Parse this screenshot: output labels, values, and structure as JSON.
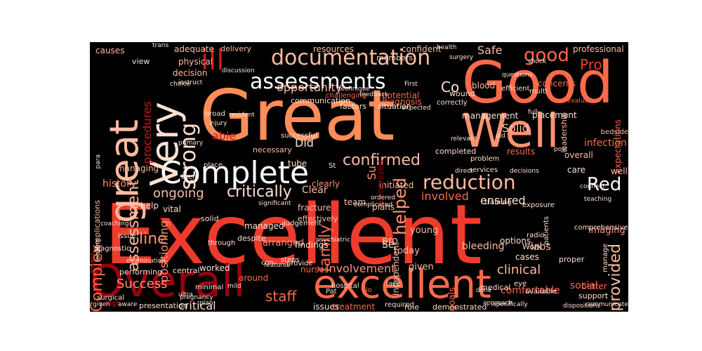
{
  "cloud": {
    "words": [
      {
        "text": "Excellent",
        "color": "#ef3b2c"
      },
      {
        "text": "Great",
        "color": "#fc8d59"
      },
      {
        "text": "Good",
        "color": "#fb6a4a"
      },
      {
        "text": "Well",
        "color": "#fc9272"
      },
      {
        "text": "Complete",
        "color": "#ffffff"
      },
      {
        "text": "Overall",
        "color": "#99000d"
      },
      {
        "text": "excellent",
        "color": "#fb6a4a"
      },
      {
        "text": "great",
        "color": "#fcbba1"
      },
      {
        "text": "Very",
        "color": "#fee0d2"
      },
      {
        "text": "ill",
        "color": "#cb181d"
      },
      {
        "text": "documentation",
        "color": "#fcbba1"
      },
      {
        "text": "assessments",
        "color": "#ffffff"
      },
      {
        "text": "good",
        "color": "#fb6a4a"
      },
      {
        "text": "Pro",
        "color": "#ef3b2c"
      },
      {
        "text": "Safe",
        "color": "#fcbba1"
      },
      {
        "text": "Co",
        "color": "#fee0d2"
      },
      {
        "text": "strong",
        "color": "#fee0d2"
      },
      {
        "text": "assessment",
        "color": "#fcbba1"
      },
      {
        "text": "confirmed",
        "color": "#fcbba1"
      },
      {
        "text": "reduction",
        "color": "#fcbba1"
      },
      {
        "text": "Red",
        "color": "#ffffff"
      },
      {
        "text": "Complex",
        "color": "#fb6a4a"
      },
      {
        "text": "critically",
        "color": "#fee0d2"
      },
      {
        "text": "ongoing",
        "color": "#fcbba1"
      },
      {
        "text": "Solid",
        "color": "#fcbba1"
      },
      {
        "text": "Did",
        "color": "#fee0d2"
      },
      {
        "text": "Su",
        "color": "#fc9272"
      },
      {
        "text": "helped",
        "color": "#fc9272"
      },
      {
        "text": "involved",
        "color": "#fb6a4a"
      },
      {
        "text": "ensured",
        "color": "#fee0d2"
      },
      {
        "text": "provided",
        "color": "#fcbba1"
      },
      {
        "text": "line",
        "color": "#fc9272"
      },
      {
        "text": "family",
        "color": "#fb6a4a"
      },
      {
        "text": "involvement",
        "color": "#fc9272"
      },
      {
        "text": "clinical",
        "color": "#fcbba1"
      },
      {
        "text": "Success",
        "color": "#fc9272"
      },
      {
        "text": "critical",
        "color": "#fee0d2"
      },
      {
        "text": "staff",
        "color": "#fb6a4a"
      },
      {
        "text": "opportunity",
        "color": "#fcbba1"
      },
      {
        "text": "procedures",
        "color": "#cb181d"
      },
      {
        "text": "positioning",
        "color": "#fc9272"
      },
      {
        "text": "history",
        "color": "#fc9272"
      },
      {
        "text": "tube",
        "color": "#fee0d2"
      },
      {
        "text": "St",
        "color": "#fee0d2"
      },
      {
        "text": "managed",
        "color": "#fee0d2"
      },
      {
        "text": "arranged",
        "color": "#fc9272"
      },
      {
        "text": "findings",
        "color": "#fee0d2"
      },
      {
        "text": "Se",
        "color": "#fee0d2"
      },
      {
        "text": "today",
        "color": "#fcbba1"
      },
      {
        "text": "given",
        "color": "#fcbba1"
      },
      {
        "text": "bleeding",
        "color": "#fcbba1"
      },
      {
        "text": "labs",
        "color": "#fcbba1"
      },
      {
        "text": "imaging",
        "color": "#fc9272"
      },
      {
        "text": "infection",
        "color": "#fb6a4a"
      },
      {
        "text": "placement",
        "color": "#fee0d2"
      },
      {
        "text": "management",
        "color": "#fee0d2"
      },
      {
        "text": "blood",
        "color": "#fcbba1"
      },
      {
        "text": "results",
        "color": "#fb6a4a"
      },
      {
        "text": "overall",
        "color": "#fcbba1"
      },
      {
        "text": "care",
        "color": "#fee0d2"
      },
      {
        "text": "well",
        "color": "#fcbba1"
      },
      {
        "text": "professional",
        "color": "#fcbba1"
      },
      {
        "text": "Clear",
        "color": "#fcbba1"
      },
      {
        "text": "pro",
        "color": "#fcbba1"
      },
      {
        "text": "young",
        "color": "#fcbba1"
      },
      {
        "text": "plans",
        "color": "#fcbba1"
      },
      {
        "text": "initiated",
        "color": "#fcbba1"
      },
      {
        "text": "team",
        "color": "#fcbba1"
      },
      {
        "text": "diagnosis",
        "color": "#fb6a4a"
      },
      {
        "text": "resources",
        "color": "#fcbba1"
      },
      {
        "text": "confident",
        "color": "#fcbba1"
      },
      {
        "text": "adequate",
        "color": "#fcbba1"
      },
      {
        "text": "causes",
        "color": "#fcbba1"
      },
      {
        "text": "physical",
        "color": "#fcbba1"
      },
      {
        "text": "decision",
        "color": "#fcbba1"
      },
      {
        "text": "view",
        "color": "#fee0d2"
      },
      {
        "text": "able",
        "color": "#cb181d"
      },
      {
        "text": "managing",
        "color": "#fcbba1"
      },
      {
        "text": "help",
        "color": "#fee0d2"
      },
      {
        "text": "vital",
        "color": "#fee0d2"
      },
      {
        "text": "complications",
        "color": "#fcbba1"
      },
      {
        "text": "Independent",
        "color": "#fcbba1"
      },
      {
        "text": "goals",
        "color": "#fb6a4a"
      },
      {
        "text": "treatment",
        "color": "#fb6a4a"
      },
      {
        "text": "issues",
        "color": "#fee0d2"
      },
      {
        "text": "role",
        "color": "#fee0d2"
      },
      {
        "text": "demonstrated",
        "color": "#fee0d2"
      },
      {
        "text": "comfortable",
        "color": "#fb6a4a"
      },
      {
        "text": "social",
        "color": "#fb6a4a"
      },
      {
        "text": "support",
        "color": "#fee0d2"
      },
      {
        "text": "better",
        "color": "#fb6a4a"
      },
      {
        "text": "proper",
        "color": "#fee0d2"
      },
      {
        "text": "options",
        "color": "#fee0d2"
      },
      {
        "text": "cases",
        "color": "#fee0d2"
      },
      {
        "text": "medical",
        "color": "#fee0d2"
      },
      {
        "text": "worked",
        "color": "#fee0d2"
      },
      {
        "text": "central",
        "color": "#fee0d2"
      },
      {
        "text": "performing",
        "color": "#fee0d2"
      },
      {
        "text": "solid",
        "color": "#fee0d2"
      },
      {
        "text": "despite",
        "color": "#fee0d2"
      },
      {
        "text": "around",
        "color": "#fb6a4a"
      },
      {
        "text": "recognized",
        "color": "#99000d"
      },
      {
        "text": "expectations",
        "color": "#fb6a4a"
      },
      {
        "text": "leadership",
        "color": "#fcbba1"
      },
      {
        "text": "delivery",
        "color": "#fcbba1"
      },
      {
        "text": "wound",
        "color": "#fee0d2"
      },
      {
        "text": "concerns",
        "color": "#fb6a4a"
      },
      {
        "text": "communication",
        "color": "#fee0d2"
      },
      {
        "text": "factors",
        "color": "#fee0d2"
      },
      {
        "text": "situation",
        "color": "#fee0d2"
      },
      {
        "text": "potential",
        "color": "#fb6a4a"
      },
      {
        "text": "members",
        "color": "#fee0d2"
      },
      {
        "text": "necessary",
        "color": "#fcbba1"
      },
      {
        "text": "clearly",
        "color": "#fc9272"
      },
      {
        "text": "fracture",
        "color": "#fcbba1"
      },
      {
        "text": "effectively",
        "color": "#fcbba1"
      },
      {
        "text": "con",
        "color": "#fee0d2"
      },
      {
        "text": "nurses",
        "color": "#fb6a4a"
      },
      {
        "text": "provide",
        "color": "#fee0d2"
      },
      {
        "text": "minimal",
        "color": "#fee0d2"
      },
      {
        "text": "diagnostic",
        "color": "#fee0d2"
      },
      {
        "text": "surgical",
        "color": "#fee0d2"
      },
      {
        "text": "issue",
        "color": "#fee0d2"
      },
      {
        "text": "high",
        "color": "#cb181d"
      },
      {
        "text": "through",
        "color": "#fee0d2"
      },
      {
        "text": "place",
        "color": "#fee0d2"
      },
      {
        "text": "their",
        "color": "#fee0d2"
      },
      {
        "text": "broad",
        "color": "#fee0d2"
      },
      {
        "text": "successful",
        "color": "#fee0d2"
      },
      {
        "text": "challenging",
        "color": "#fb6a4a"
      },
      {
        "text": "completed",
        "color": "#fee0d2"
      },
      {
        "text": "efficient",
        "color": "#fee0d2"
      },
      {
        "text": "multi",
        "color": "#fee0d2"
      },
      {
        "text": "bedside",
        "color": "#fcbba1"
      },
      {
        "text": "Work",
        "color": "#fee0d2"
      },
      {
        "text": "eye",
        "color": "#fee0d2"
      },
      {
        "text": "radio",
        "color": "#fee0d2"
      },
      {
        "text": "lace",
        "color": "#fee0d2"
      },
      {
        "text": "hospital",
        "color": "#fee0d2"
      },
      {
        "text": "steps",
        "color": "#fee0d2"
      },
      {
        "text": "features",
        "color": "#fee0d2"
      },
      {
        "text": "mild",
        "color": "#fee0d2"
      },
      {
        "text": "primary",
        "color": "#fee0d2"
      },
      {
        "text": "ordered",
        "color": "#fee0d2"
      },
      {
        "text": "health",
        "color": "#fee0d2"
      },
      {
        "text": "surgery",
        "color": "#fee0d2"
      },
      {
        "text": "shock",
        "color": "#fee0d2"
      },
      {
        "text": "judgement",
        "color": "#fee0d2"
      },
      {
        "text": "No",
        "color": "#fb6a4a"
      },
      {
        "text": "Pat",
        "color": "#fee0d2"
      },
      {
        "text": "required",
        "color": "#fee0d2"
      },
      {
        "text": "manage",
        "color": "#fee0d2"
      },
      {
        "text": "available",
        "color": "#fee0d2"
      },
      {
        "text": "comprehensive",
        "color": "#fee0d2"
      },
      {
        "text": "exposure",
        "color": "#fee0d2"
      },
      {
        "text": "training",
        "color": "#fee0d2"
      },
      {
        "text": "services",
        "color": "#fee0d2"
      },
      {
        "text": "problem",
        "color": "#fee0d2"
      },
      {
        "text": "relevant",
        "color": "#fee0d2"
      },
      {
        "text": "correctly",
        "color": "#fee0d2"
      },
      {
        "text": "First",
        "color": "#fee0d2"
      },
      {
        "text": "feedback",
        "color": "#fee0d2"
      },
      {
        "text": "technique",
        "color": "#fee0d2"
      },
      {
        "text": "discussion",
        "color": "#fee0d2"
      },
      {
        "text": "choice",
        "color": "#fee0d2"
      },
      {
        "text": "patients",
        "color": "#fee0d2"
      },
      {
        "text": "old",
        "color": "#fee0d2"
      },
      {
        "text": "looking",
        "color": "#fee0d2"
      },
      {
        "text": "para",
        "color": "#fee0d2"
      },
      {
        "text": "always",
        "color": "#cb181d"
      },
      {
        "text": "given",
        "color": "#fee0d2"
      },
      {
        "text": "presentation",
        "color": "#fee0d2"
      },
      {
        "text": "pregnancy",
        "color": "#fee0d2"
      },
      {
        "text": "psychiatric",
        "color": "#fee0d2"
      },
      {
        "text": "significant",
        "color": "#fee0d2"
      },
      {
        "text": "direct",
        "color": "#fee0d2"
      },
      {
        "text": "evaluation",
        "color": "#fb6a4a"
      },
      {
        "text": "decisions",
        "color": "#fee0d2"
      },
      {
        "text": "specifically",
        "color": "#fee0d2"
      },
      {
        "text": "approach",
        "color": "#fee0d2"
      },
      {
        "text": "dispositions",
        "color": "#fee0d2"
      },
      {
        "text": "teaching",
        "color": "#fee0d2"
      },
      {
        "text": "communicate",
        "color": "#fee0d2"
      },
      {
        "text": "plan",
        "color": "#fee0d2"
      },
      {
        "text": "aware",
        "color": "#fee0d2"
      },
      {
        "text": "ultra",
        "color": "#fee0d2"
      },
      {
        "text": "injury",
        "color": "#fee0d2"
      },
      {
        "text": "resident",
        "color": "#fee0d2"
      },
      {
        "text": "complicated",
        "color": "#fee0d2"
      },
      {
        "text": "expected",
        "color": "#fee0d2"
      },
      {
        "text": "done",
        "color": "#fee0d2"
      },
      {
        "text": "questions",
        "color": "#fee0d2"
      },
      {
        "text": "full",
        "color": "#fee0d2"
      },
      {
        "text": "post",
        "color": "#fee0d2"
      },
      {
        "text": "connect",
        "color": "#fee0d2"
      },
      {
        "text": "coaching",
        "color": "#fee0d2"
      },
      {
        "text": "examination",
        "color": "#fee0d2"
      },
      {
        "text": "trans",
        "color": "#fee0d2"
      },
      {
        "text": "instruct",
        "color": "#fee0d2"
      }
    ]
  }
}
